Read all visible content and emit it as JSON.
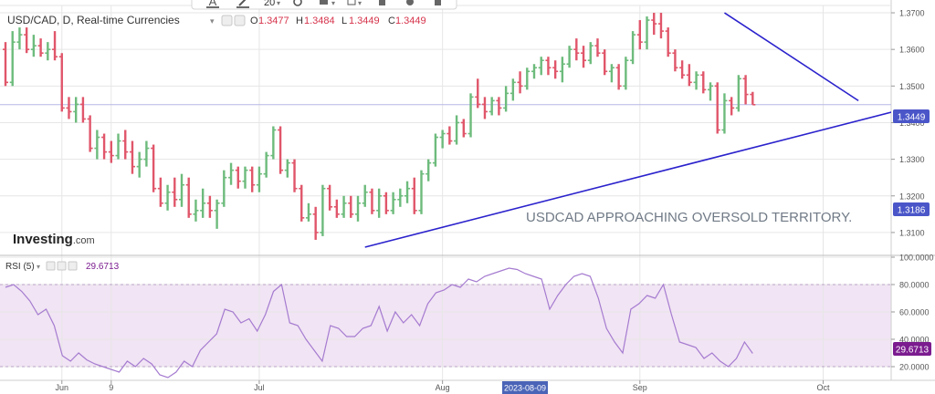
{
  "colors": {
    "up": "#6dbb7c",
    "down": "#e0566a",
    "trend": "#2b22cc",
    "rsi_line": "#a57bd0",
    "rsi_band": "#f1e4f4",
    "price_line": "#b7b7e8",
    "grid": "#e6e6e6",
    "axis_text": "#555555",
    "ohlc_value": "#d6334b"
  },
  "toolbar": {
    "font_size": "20"
  },
  "header": {
    "symbol": "USD/CAD, D, Real-time Currencies",
    "o_label": "O",
    "o_value": "1.3477",
    "h_label": "H",
    "h_value": "1.3484",
    "l_label": "L",
    "l_value": "1.3449",
    "c_label": "C",
    "c_value": "1.3449"
  },
  "branding": {
    "logo": "Investing",
    "suffix": ".com"
  },
  "annotation": "USDCAD APPROACHING OVERSOLD TERRITORY.",
  "rsi_legend": {
    "label": "RSI (5)",
    "value": "29.6713"
  },
  "chart_data": [
    {
      "type": "ohlc",
      "title": "USD/CAD, D, Real-time Currencies",
      "ylim": [
        1.304,
        1.372
      ],
      "y_ticks": [
        "1.3700",
        "1.3600",
        "1.3500",
        "1.3400",
        "1.3300",
        "1.3200",
        "1.3100"
      ],
      "x_ticks": [
        "Jun",
        "9",
        "Jul",
        "Aug",
        "Sep",
        "Oct"
      ],
      "x_tick_bars": [
        8,
        15,
        36,
        62,
        90,
        116
      ],
      "crosshair_date": "2023-08-09",
      "last_price": "1.3449",
      "secondary_price": "1.3186",
      "bars": [
        [
          1.36,
          1.362,
          1.35,
          1.351
        ],
        [
          1.351,
          1.365,
          1.35,
          1.362
        ],
        [
          1.362,
          1.366,
          1.36,
          1.364
        ],
        [
          1.364,
          1.366,
          1.359,
          1.36
        ],
        [
          1.36,
          1.364,
          1.358,
          1.361
        ],
        [
          1.361,
          1.363,
          1.358,
          1.359
        ],
        [
          1.359,
          1.362,
          1.357,
          1.36
        ],
        [
          1.36,
          1.365,
          1.357,
          1.358
        ],
        [
          1.358,
          1.359,
          1.343,
          1.344
        ],
        [
          1.344,
          1.347,
          1.341,
          1.343
        ],
        [
          1.343,
          1.347,
          1.34,
          1.345
        ],
        [
          1.345,
          1.347,
          1.34,
          1.341
        ],
        [
          1.341,
          1.342,
          1.332,
          1.333
        ],
        [
          1.333,
          1.338,
          1.33,
          1.336
        ],
        [
          1.336,
          1.337,
          1.33,
          1.332
        ],
        [
          1.332,
          1.335,
          1.329,
          1.331
        ],
        [
          1.331,
          1.337,
          1.33,
          1.335
        ],
        [
          1.335,
          1.338,
          1.33,
          1.332
        ],
        [
          1.332,
          1.335,
          1.326,
          1.328
        ],
        [
          1.328,
          1.332,
          1.325,
          1.33
        ],
        [
          1.33,
          1.335,
          1.328,
          1.333
        ],
        [
          1.333,
          1.334,
          1.321,
          1.322
        ],
        [
          1.322,
          1.325,
          1.317,
          1.318
        ],
        [
          1.318,
          1.323,
          1.316,
          1.321
        ],
        [
          1.321,
          1.325,
          1.317,
          1.319
        ],
        [
          1.319,
          1.326,
          1.317,
          1.323
        ],
        [
          1.323,
          1.325,
          1.314,
          1.315
        ],
        [
          1.315,
          1.319,
          1.313,
          1.316
        ],
        [
          1.316,
          1.322,
          1.314,
          1.318
        ],
        [
          1.318,
          1.32,
          1.314,
          1.316
        ],
        [
          1.316,
          1.319,
          1.311,
          1.318
        ],
        [
          1.318,
          1.327,
          1.317,
          1.325
        ],
        [
          1.325,
          1.329,
          1.323,
          1.327
        ],
        [
          1.327,
          1.328,
          1.322,
          1.324
        ],
        [
          1.324,
          1.328,
          1.322,
          1.327
        ],
        [
          1.327,
          1.328,
          1.321,
          1.323
        ],
        [
          1.323,
          1.328,
          1.321,
          1.326
        ],
        [
          1.326,
          1.332,
          1.325,
          1.331
        ],
        [
          1.331,
          1.339,
          1.33,
          1.338
        ],
        [
          1.338,
          1.339,
          1.326,
          1.327
        ],
        [
          1.327,
          1.33,
          1.325,
          1.329
        ],
        [
          1.329,
          1.33,
          1.321,
          1.322
        ],
        [
          1.322,
          1.323,
          1.313,
          1.314
        ],
        [
          1.314,
          1.318,
          1.313,
          1.315
        ],
        [
          1.315,
          1.317,
          1.308,
          1.31
        ],
        [
          1.31,
          1.323,
          1.309,
          1.322
        ],
        [
          1.322,
          1.323,
          1.316,
          1.317
        ],
        [
          1.317,
          1.319,
          1.314,
          1.315
        ],
        [
          1.315,
          1.32,
          1.314,
          1.318
        ],
        [
          1.318,
          1.32,
          1.314,
          1.315
        ],
        [
          1.315,
          1.32,
          1.313,
          1.318
        ],
        [
          1.318,
          1.323,
          1.317,
          1.321
        ],
        [
          1.321,
          1.322,
          1.315,
          1.316
        ],
        [
          1.316,
          1.322,
          1.314,
          1.32
        ],
        [
          1.32,
          1.321,
          1.315,
          1.316
        ],
        [
          1.316,
          1.321,
          1.315,
          1.319
        ],
        [
          1.319,
          1.322,
          1.317,
          1.32
        ],
        [
          1.32,
          1.324,
          1.318,
          1.322
        ],
        [
          1.322,
          1.325,
          1.315,
          1.316
        ],
        [
          1.316,
          1.327,
          1.315,
          1.326
        ],
        [
          1.326,
          1.33,
          1.324,
          1.329
        ],
        [
          1.329,
          1.337,
          1.328,
          1.336
        ],
        [
          1.336,
          1.338,
          1.333,
          1.337
        ],
        [
          1.337,
          1.339,
          1.334,
          1.335
        ],
        [
          1.335,
          1.342,
          1.334,
          1.34
        ],
        [
          1.34,
          1.341,
          1.336,
          1.337
        ],
        [
          1.337,
          1.348,
          1.336,
          1.347
        ],
        [
          1.347,
          1.352,
          1.344,
          1.345
        ],
        [
          1.345,
          1.347,
          1.341,
          1.343
        ],
        [
          1.343,
          1.347,
          1.342,
          1.346
        ],
        [
          1.346,
          1.347,
          1.342,
          1.344
        ],
        [
          1.344,
          1.35,
          1.343,
          1.348
        ],
        [
          1.348,
          1.352,
          1.346,
          1.351
        ],
        [
          1.351,
          1.354,
          1.348,
          1.35
        ],
        [
          1.35,
          1.355,
          1.349,
          1.354
        ],
        [
          1.354,
          1.356,
          1.352,
          1.355
        ],
        [
          1.355,
          1.358,
          1.353,
          1.357
        ],
        [
          1.357,
          1.358,
          1.353,
          1.355
        ],
        [
          1.355,
          1.357,
          1.352,
          1.354
        ],
        [
          1.354,
          1.358,
          1.351,
          1.356
        ],
        [
          1.356,
          1.361,
          1.355,
          1.36
        ],
        [
          1.36,
          1.363,
          1.357,
          1.359
        ],
        [
          1.359,
          1.361,
          1.355,
          1.357
        ],
        [
          1.357,
          1.362,
          1.356,
          1.361
        ],
        [
          1.361,
          1.363,
          1.358,
          1.359
        ],
        [
          1.359,
          1.36,
          1.353,
          1.354
        ],
        [
          1.354,
          1.356,
          1.351,
          1.355
        ],
        [
          1.355,
          1.356,
          1.349,
          1.35
        ],
        [
          1.35,
          1.358,
          1.349,
          1.357
        ],
        [
          1.357,
          1.365,
          1.356,
          1.364
        ],
        [
          1.364,
          1.368,
          1.36,
          1.362
        ],
        [
          1.362,
          1.369,
          1.36,
          1.368
        ],
        [
          1.368,
          1.37,
          1.364,
          1.367
        ],
        [
          1.367,
          1.37,
          1.363,
          1.365
        ],
        [
          1.365,
          1.366,
          1.358,
          1.359
        ],
        [
          1.359,
          1.36,
          1.354,
          1.355
        ],
        [
          1.355,
          1.357,
          1.352,
          1.353
        ],
        [
          1.353,
          1.356,
          1.35,
          1.351
        ],
        [
          1.351,
          1.354,
          1.349,
          1.353
        ],
        [
          1.353,
          1.354,
          1.348,
          1.349
        ],
        [
          1.349,
          1.351,
          1.346,
          1.35
        ],
        [
          1.35,
          1.351,
          1.337,
          1.338
        ],
        [
          1.338,
          1.348,
          1.337,
          1.346
        ],
        [
          1.346,
          1.347,
          1.342,
          1.344
        ],
        [
          1.344,
          1.353,
          1.343,
          1.352
        ],
        [
          1.352,
          1.353,
          1.345,
          1.3477
        ],
        [
          1.3477,
          1.3484,
          1.3449,
          1.3449
        ]
      ],
      "trendlines": [
        {
          "from_bar": 51,
          "from_price": 1.306,
          "to_bar": 128,
          "to_price": 1.344
        },
        {
          "from_bar": 102,
          "from_price": 1.37,
          "to_bar": 121,
          "to_price": 1.346
        }
      ]
    },
    {
      "type": "line",
      "title": "RSI (5)",
      "ylim": [
        10,
        100
      ],
      "y_ticks": [
        "100.0000",
        "80.0000",
        "60.0000",
        "40.0000",
        "20.0000"
      ],
      "band": [
        20,
        80
      ],
      "last_value": "29.6713",
      "values": [
        78,
        80,
        75,
        68,
        58,
        62,
        50,
        28,
        24,
        30,
        25,
        22,
        20,
        18,
        16,
        24,
        20,
        26,
        22,
        14,
        12,
        16,
        24,
        20,
        32,
        38,
        44,
        62,
        60,
        52,
        55,
        46,
        58,
        75,
        80,
        52,
        50,
        40,
        32,
        24,
        50,
        48,
        42,
        42,
        48,
        50,
        64,
        46,
        60,
        52,
        58,
        50,
        66,
        74,
        76,
        80,
        78,
        84,
        82,
        86,
        88,
        90,
        92,
        91,
        88,
        86,
        84,
        62,
        72,
        80,
        86,
        88,
        86,
        70,
        48,
        38,
        30,
        62,
        66,
        72,
        70,
        80,
        58,
        38,
        36,
        34,
        26,
        30,
        24,
        20,
        26,
        38,
        29.6713
      ]
    }
  ]
}
